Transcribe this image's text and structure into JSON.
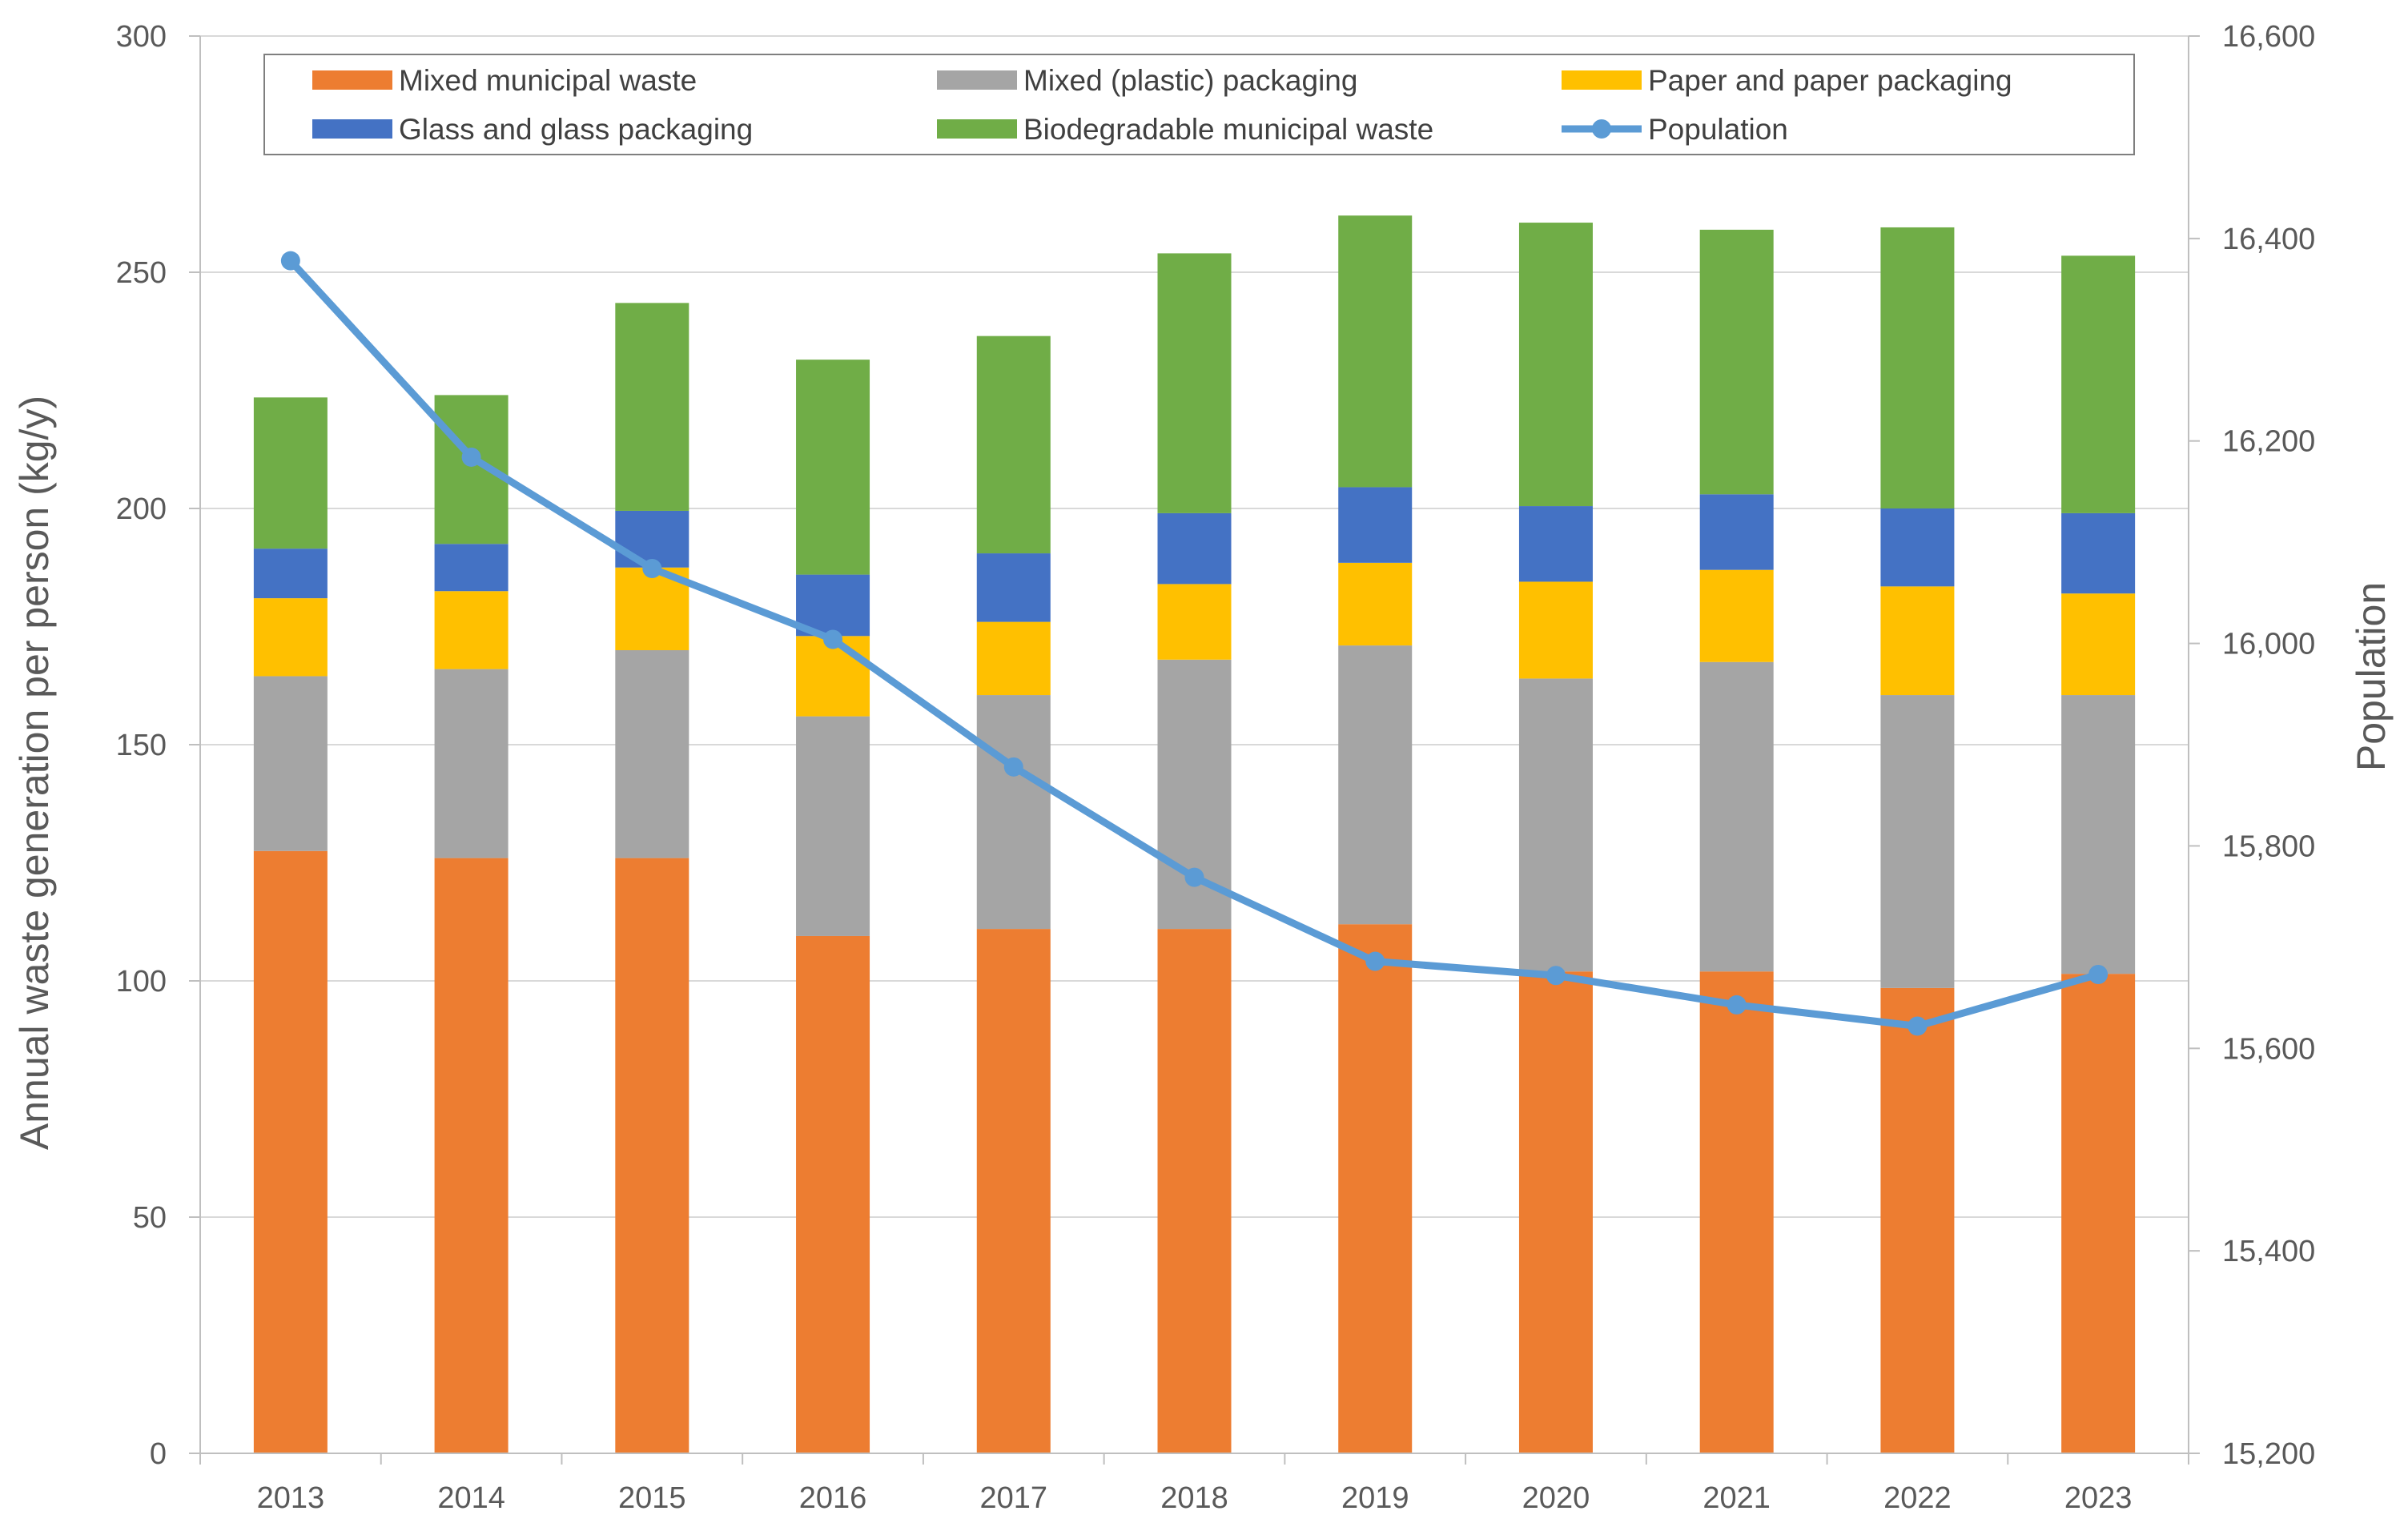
{
  "chart_data": {
    "type": "bar",
    "stacked": true,
    "title": "",
    "categories": [
      "2013",
      "2014",
      "2015",
      "2016",
      "2017",
      "2018",
      "2019",
      "2020",
      "2021",
      "2022",
      "2023"
    ],
    "series": [
      {
        "name": "Mixed municipal waste",
        "color": "#ED7D31",
        "values": [
          127.5,
          126.0,
          126.0,
          109.5,
          111.0,
          111.0,
          112.0,
          102.0,
          102.0,
          98.5,
          101.5
        ]
      },
      {
        "name": "Mixed (plastic) packaging",
        "color": "#A5A5A5",
        "values": [
          37.0,
          40.0,
          44.0,
          46.5,
          49.5,
          57.0,
          59.0,
          62.0,
          65.5,
          62.0,
          59.0
        ]
      },
      {
        "name": "Paper and paper packaging",
        "color": "#FFC000",
        "values": [
          16.5,
          16.5,
          17.5,
          17.0,
          15.5,
          16.0,
          17.5,
          20.5,
          19.5,
          23.0,
          21.5
        ]
      },
      {
        "name": "Glass and glass packaging",
        "color": "#4472C4",
        "values": [
          10.5,
          10.0,
          12.0,
          13.0,
          14.5,
          15.0,
          16.0,
          16.0,
          16.0,
          16.5,
          17.0
        ]
      },
      {
        "name": "Biodegradable municipal waste",
        "color": "#70AD47",
        "values": [
          32.0,
          31.5,
          44.0,
          45.5,
          46.0,
          55.0,
          57.5,
          60.0,
          56.0,
          59.5,
          54.5
        ]
      }
    ],
    "line_series": {
      "name": "Population",
      "color": "#5B9BD5",
      "axis": "right",
      "values": [
        16378,
        16184,
        16074,
        16004,
        15878,
        15769,
        15686,
        15672,
        15643,
        15622,
        15673
      ]
    },
    "ylabel": "Annual waste generation per person  (kg/y)",
    "y2label": "Population",
    "xlabel": "",
    "ylim": [
      0,
      300
    ],
    "y2lim": [
      15200,
      16600
    ],
    "yticks": [
      0,
      50,
      100,
      150,
      200,
      250,
      300
    ],
    "y2ticks": [
      15200,
      15400,
      15600,
      15800,
      16000,
      16200,
      16400,
      16600
    ],
    "y_tick_labels": [
      "0",
      "50",
      "100",
      "150",
      "200",
      "250",
      "300"
    ],
    "y2_tick_labels": [
      "15,200",
      "15,400",
      "15,600",
      "15,800",
      "16,000",
      "16,200",
      "16,400",
      "16,600"
    ],
    "grid": true,
    "legend": {
      "position": "top-inside",
      "entries": [
        "Mixed municipal waste",
        "Mixed (plastic) packaging",
        "Paper and paper packaging",
        "Glass and glass packaging",
        "Biodegradable municipal waste",
        "Population"
      ]
    }
  }
}
